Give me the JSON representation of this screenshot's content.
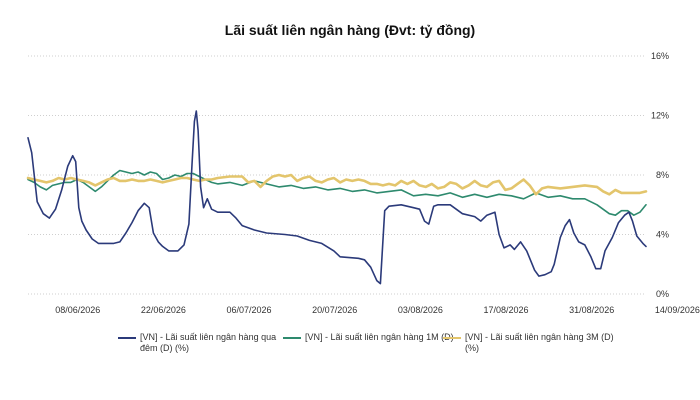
{
  "chart_data": {
    "type": "line",
    "title": "Lãi suất liên ngân hàng (Đvt: tỷ đồng)",
    "ylim": [
      0,
      16
    ],
    "y_tick_labels": [
      "0%",
      "4%",
      "8%",
      "12%",
      "16%"
    ],
    "y_tick_values": [
      0,
      4,
      8,
      12,
      16
    ],
    "x_tick_labels": [
      "08/06/2026",
      "22/06/2026",
      "06/07/2026",
      "20/07/2026",
      "03/08/2026",
      "17/08/2026",
      "31/08/2026",
      "14/09/2026"
    ],
    "x_tick_days": [
      6,
      20,
      34,
      48,
      62,
      76,
      90,
      104
    ],
    "x_range_days": [
      0,
      107
    ],
    "grid": "horizontal-dotted",
    "legend_position": "bottom",
    "series": [
      {
        "name": "[VN] - Lãi suất liên ngân hàng qua đêm (D) (%)",
        "color": "#2b3a7a",
        "points": [
          [
            0,
            10.5
          ],
          [
            0.6,
            9.5
          ],
          [
            1.5,
            6.2
          ],
          [
            2.5,
            5.4
          ],
          [
            3.5,
            5.1
          ],
          [
            4.5,
            5.7
          ],
          [
            5.5,
            7.0
          ],
          [
            6.5,
            8.6
          ],
          [
            7.3,
            9.3
          ],
          [
            7.8,
            8.9
          ],
          [
            8.3,
            5.8
          ],
          [
            8.8,
            4.9
          ],
          [
            9.5,
            4.3
          ],
          [
            10.5,
            3.7
          ],
          [
            11.5,
            3.4
          ],
          [
            13,
            3.4
          ],
          [
            14,
            3.4
          ],
          [
            15,
            3.5
          ],
          [
            16,
            4.1
          ],
          [
            17,
            4.8
          ],
          [
            18,
            5.6
          ],
          [
            19,
            6.1
          ],
          [
            19.8,
            5.8
          ],
          [
            20.5,
            4.1
          ],
          [
            21.3,
            3.5
          ],
          [
            22,
            3.2
          ],
          [
            23,
            2.9
          ],
          [
            24.5,
            2.9
          ],
          [
            25.5,
            3.3
          ],
          [
            26.3,
            4.7
          ],
          [
            26.8,
            8.7
          ],
          [
            27.2,
            11.6
          ],
          [
            27.5,
            12.3
          ],
          [
            27.8,
            11.0
          ],
          [
            28.2,
            7.2
          ],
          [
            28.7,
            5.8
          ],
          [
            29.3,
            6.4
          ],
          [
            30,
            5.7
          ],
          [
            31,
            5.5
          ],
          [
            33,
            5.5
          ],
          [
            34,
            5.1
          ],
          [
            35,
            4.6
          ],
          [
            37,
            4.3
          ],
          [
            39,
            4.1
          ],
          [
            42,
            4.0
          ],
          [
            44,
            3.9
          ],
          [
            46,
            3.6
          ],
          [
            48,
            3.4
          ],
          [
            50,
            2.9
          ],
          [
            51,
            2.5
          ],
          [
            54,
            2.4
          ],
          [
            55,
            2.3
          ],
          [
            56,
            1.8
          ],
          [
            57,
            0.9
          ],
          [
            57.6,
            0.7
          ],
          [
            58.3,
            5.6
          ],
          [
            59,
            5.9
          ],
          [
            61,
            6.0
          ],
          [
            63,
            5.8
          ],
          [
            64,
            5.7
          ],
          [
            64.8,
            4.9
          ],
          [
            65.5,
            4.7
          ],
          [
            66.3,
            5.9
          ],
          [
            67,
            6.0
          ],
          [
            69,
            6.0
          ],
          [
            71,
            5.4
          ],
          [
            73,
            5.2
          ],
          [
            74,
            4.9
          ],
          [
            75,
            5.3
          ],
          [
            76.3,
            5.5
          ],
          [
            77,
            4.0
          ],
          [
            77.8,
            3.1
          ],
          [
            78.8,
            3.3
          ],
          [
            79.5,
            3.0
          ],
          [
            80.5,
            3.5
          ],
          [
            81.5,
            2.9
          ],
          [
            82.8,
            1.6
          ],
          [
            83.5,
            1.2
          ],
          [
            84.5,
            1.3
          ],
          [
            85.5,
            1.5
          ],
          [
            86,
            2.0
          ],
          [
            87,
            3.8
          ],
          [
            87.8,
            4.6
          ],
          [
            88.5,
            5.0
          ],
          [
            89.2,
            4.1
          ],
          [
            90,
            3.5
          ],
          [
            91,
            3.3
          ],
          [
            92,
            2.5
          ],
          [
            92.8,
            1.7
          ],
          [
            93.6,
            1.7
          ],
          [
            94.3,
            2.9
          ],
          [
            95.5,
            3.8
          ],
          [
            96.5,
            4.8
          ],
          [
            97.5,
            5.3
          ],
          [
            98.2,
            5.5
          ],
          [
            98.8,
            4.9
          ],
          [
            99.5,
            3.9
          ],
          [
            100.5,
            3.4
          ],
          [
            101,
            3.2
          ]
        ]
      },
      {
        "name": "[VN] - Lãi suất liên ngân hàng 1M (D)",
        "color": "#2e8a6e",
        "points": [
          [
            0,
            7.7
          ],
          [
            1,
            7.5
          ],
          [
            2,
            7.2
          ],
          [
            3,
            7.0
          ],
          [
            4,
            7.3
          ],
          [
            5,
            7.4
          ],
          [
            6,
            7.5
          ],
          [
            7,
            7.5
          ],
          [
            8,
            7.7
          ],
          [
            9,
            7.5
          ],
          [
            10,
            7.2
          ],
          [
            11,
            6.9
          ],
          [
            12,
            7.2
          ],
          [
            13,
            7.6
          ],
          [
            14,
            8.0
          ],
          [
            15,
            8.3
          ],
          [
            16,
            8.2
          ],
          [
            17,
            8.1
          ],
          [
            18,
            8.2
          ],
          [
            19,
            8.0
          ],
          [
            20,
            8.2
          ],
          [
            21,
            8.1
          ],
          [
            22,
            7.7
          ],
          [
            23,
            7.8
          ],
          [
            24,
            8.0
          ],
          [
            25,
            7.9
          ],
          [
            26,
            8.1
          ],
          [
            27,
            8.1
          ],
          [
            28,
            7.9
          ],
          [
            29,
            7.7
          ],
          [
            30,
            7.5
          ],
          [
            31,
            7.4
          ],
          [
            33,
            7.5
          ],
          [
            35,
            7.3
          ],
          [
            37,
            7.6
          ],
          [
            39,
            7.4
          ],
          [
            41,
            7.2
          ],
          [
            43,
            7.3
          ],
          [
            45,
            7.1
          ],
          [
            47,
            7.2
          ],
          [
            49,
            7.0
          ],
          [
            51,
            7.1
          ],
          [
            53,
            6.9
          ],
          [
            55,
            7.0
          ],
          [
            57,
            6.8
          ],
          [
            59,
            6.9
          ],
          [
            61,
            7.0
          ],
          [
            63,
            6.6
          ],
          [
            65,
            6.7
          ],
          [
            67,
            6.6
          ],
          [
            69,
            6.8
          ],
          [
            71,
            6.5
          ],
          [
            73,
            6.7
          ],
          [
            75,
            6.5
          ],
          [
            77,
            6.7
          ],
          [
            79,
            6.6
          ],
          [
            81,
            6.4
          ],
          [
            83,
            6.8
          ],
          [
            85,
            6.5
          ],
          [
            87,
            6.6
          ],
          [
            89,
            6.4
          ],
          [
            91,
            6.4
          ],
          [
            93,
            6.0
          ],
          [
            95,
            5.4
          ],
          [
            96,
            5.3
          ],
          [
            97,
            5.6
          ],
          [
            98,
            5.6
          ],
          [
            99,
            5.3
          ],
          [
            100,
            5.5
          ],
          [
            101,
            6.0
          ]
        ]
      },
      {
        "name": "[VN] - Lãi suất liên ngân hàng 3M (D) (%)",
        "color": "#e3c56c",
        "points": [
          [
            0,
            7.8
          ],
          [
            1,
            7.7
          ],
          [
            2,
            7.6
          ],
          [
            3,
            7.5
          ],
          [
            4,
            7.6
          ],
          [
            5,
            7.8
          ],
          [
            6,
            7.7
          ],
          [
            7,
            7.8
          ],
          [
            8,
            7.7
          ],
          [
            9,
            7.6
          ],
          [
            10,
            7.5
          ],
          [
            11,
            7.3
          ],
          [
            12,
            7.5
          ],
          [
            13,
            7.7
          ],
          [
            14,
            7.8
          ],
          [
            15,
            7.6
          ],
          [
            16,
            7.6
          ],
          [
            17,
            7.7
          ],
          [
            18,
            7.6
          ],
          [
            19,
            7.6
          ],
          [
            20,
            7.7
          ],
          [
            21,
            7.6
          ],
          [
            22,
            7.5
          ],
          [
            23,
            7.6
          ],
          [
            24,
            7.7
          ],
          [
            25,
            7.8
          ],
          [
            26,
            7.8
          ],
          [
            27,
            7.7
          ],
          [
            28,
            7.6
          ],
          [
            29,
            7.7
          ],
          [
            30,
            7.7
          ],
          [
            31,
            7.8
          ],
          [
            33,
            7.9
          ],
          [
            35,
            7.9
          ],
          [
            36,
            7.5
          ],
          [
            37,
            7.6
          ],
          [
            38,
            7.2
          ],
          [
            39,
            7.6
          ],
          [
            40,
            7.9
          ],
          [
            41,
            8.0
          ],
          [
            42,
            7.9
          ],
          [
            43,
            8.0
          ],
          [
            44,
            7.6
          ],
          [
            45,
            7.8
          ],
          [
            46,
            7.9
          ],
          [
            47,
            7.6
          ],
          [
            48,
            7.5
          ],
          [
            49,
            7.7
          ],
          [
            50,
            7.8
          ],
          [
            51,
            7.5
          ],
          [
            52,
            7.7
          ],
          [
            53,
            7.6
          ],
          [
            54,
            7.7
          ],
          [
            55,
            7.6
          ],
          [
            56,
            7.4
          ],
          [
            57,
            7.4
          ],
          [
            58,
            7.3
          ],
          [
            59,
            7.4
          ],
          [
            60,
            7.3
          ],
          [
            61,
            7.6
          ],
          [
            62,
            7.4
          ],
          [
            63,
            7.6
          ],
          [
            64,
            7.3
          ],
          [
            65,
            7.2
          ],
          [
            66,
            7.4
          ],
          [
            67,
            7.1
          ],
          [
            68,
            7.2
          ],
          [
            69,
            7.5
          ],
          [
            70,
            7.4
          ],
          [
            71,
            7.1
          ],
          [
            72,
            7.3
          ],
          [
            73,
            7.6
          ],
          [
            74,
            7.3
          ],
          [
            75,
            7.2
          ],
          [
            76,
            7.5
          ],
          [
            77,
            7.6
          ],
          [
            78,
            7.0
          ],
          [
            79,
            7.1
          ],
          [
            80,
            7.4
          ],
          [
            81,
            7.7
          ],
          [
            82,
            7.3
          ],
          [
            83,
            6.7
          ],
          [
            84,
            7.1
          ],
          [
            85,
            7.2
          ],
          [
            87,
            7.1
          ],
          [
            89,
            7.2
          ],
          [
            91,
            7.3
          ],
          [
            93,
            7.2
          ],
          [
            94,
            6.9
          ],
          [
            95,
            6.7
          ],
          [
            96,
            7.0
          ],
          [
            97,
            6.8
          ],
          [
            98,
            6.8
          ],
          [
            99,
            6.8
          ],
          [
            100,
            6.8
          ],
          [
            101,
            6.9
          ]
        ]
      }
    ]
  }
}
